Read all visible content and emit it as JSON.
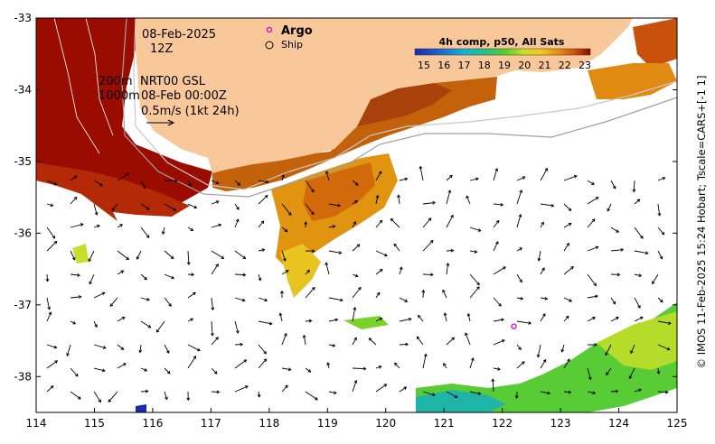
{
  "map": {
    "date": "08-Feb-2025",
    "time": "12Z",
    "contours": {
      "shallow": "200m",
      "deep": "1000m"
    },
    "current_source": "NRT00 GSL",
    "current_date": "08-Feb 00:00Z",
    "velocity_scale": "0.5m/s (1kt 24h)",
    "legend": {
      "argo_label": "Argo",
      "ship_label": "Ship"
    },
    "colorbar": {
      "title": "4h comp, p50, All Sats",
      "ticks": [
        "15",
        "16",
        "17",
        "18",
        "19",
        "20",
        "21",
        "22",
        "23"
      ],
      "min": 15,
      "max": 23
    },
    "credit": "© IMOS 11-Feb-2025 15:24 Hobart; Tscale=CARS+[-1 1]",
    "axes": {
      "lon_ticks": [
        "114",
        "115",
        "116",
        "117",
        "118",
        "119",
        "120",
        "121",
        "122",
        "123",
        "124",
        "125"
      ],
      "lat_ticks": [
        "-33",
        "-34",
        "-35",
        "-36",
        "-37",
        "-38"
      ]
    },
    "argo_float": {
      "lon": 122.2,
      "lat": -37.3
    },
    "colors": {
      "land": "#f9c89a",
      "argo": "#d400d4",
      "warm": "#9b0c00",
      "shelf": "#b8b8b8"
    }
  }
}
